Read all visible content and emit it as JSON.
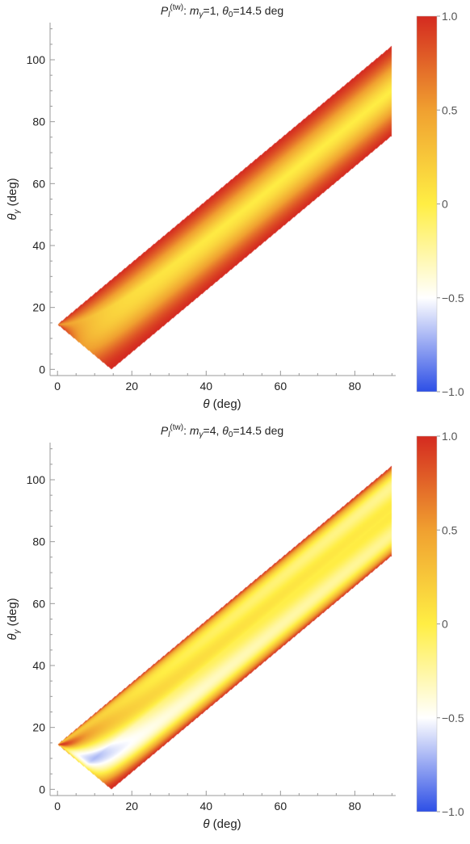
{
  "chart_data": [
    {
      "type": "heatmap",
      "title": {
        "main": "P",
        "main_sub": "l",
        "main_sup": "(tw)",
        "colon": ": ",
        "p1": "m",
        "p1_sub": "γ",
        "p1_rest": "=1, ",
        "p2": "θ",
        "p2_sub": "0",
        "p2_rest": "=14.5 deg"
      },
      "xlabel": {
        "symbol": "θ",
        "unit": "  (deg)"
      },
      "ylabel": {
        "symbol": "θ",
        "sub": "γ",
        "unit": " (deg)"
      },
      "xlim": [
        -2,
        91
      ],
      "ylim": [
        -2,
        112
      ],
      "xticks": [
        0,
        20,
        40,
        60,
        80
      ],
      "yticks": [
        0,
        20,
        40,
        60,
        80,
        100
      ],
      "theta0": 14.5,
      "m_gamma": 1,
      "colorbar": {
        "range": [
          -1,
          1
        ],
        "ticks": [
          "1.0",
          "0.5",
          "0",
          "−0.5",
          "−1.0"
        ],
        "colors": [
          "#2d4fe6",
          "#ffffff",
          "#ffee44",
          "#f0a030",
          "#d42a20"
        ]
      }
    },
    {
      "type": "heatmap",
      "title": {
        "main": "P",
        "main_sub": "l",
        "main_sup": "(tw)",
        "colon": ": ",
        "p1": "m",
        "p1_sub": "γ",
        "p1_rest": "=4, ",
        "p2": "θ",
        "p2_sub": "0",
        "p2_rest": "=14.5 deg"
      },
      "xlabel": {
        "symbol": "θ",
        "unit": "  (deg)"
      },
      "ylabel": {
        "symbol": "θ",
        "sub": "γ",
        "unit": " (deg)"
      },
      "xlim": [
        -2,
        91
      ],
      "ylim": [
        -2,
        112
      ],
      "xticks": [
        0,
        20,
        40,
        60,
        80
      ],
      "yticks": [
        0,
        20,
        40,
        60,
        80,
        100
      ],
      "theta0": 14.5,
      "m_gamma": 4,
      "colorbar": {
        "range": [
          -1,
          1
        ],
        "ticks": [
          "1.0",
          "0.5",
          "0",
          "−0.5",
          "−1.0"
        ],
        "colors": [
          "#2d4fe6",
          "#ffffff",
          "#ffee44",
          "#f0a030",
          "#d42a20"
        ]
      }
    }
  ]
}
